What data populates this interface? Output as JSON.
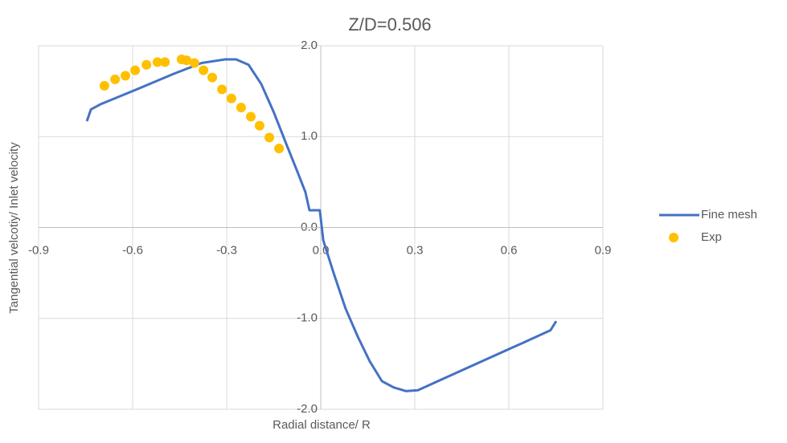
{
  "chart_data": {
    "type": "line",
    "title": "Z/D=0.506",
    "x_label": "Radial distance/ R",
    "y_label": "Tangential velcotiy/ Inlet velocity",
    "xlim": [
      -0.9,
      0.9
    ],
    "xticks": [
      -0.9,
      -0.6,
      -0.3,
      {
        "value": 0,
        "label": "0.0"
      },
      0.3,
      0.6,
      0.9
    ],
    "ylim": [
      -2,
      2
    ],
    "yticks": [
      {
        "value": 2,
        "label": "2.0"
      },
      {
        "value": 1,
        "label": "1.0"
      },
      {
        "value": 0,
        "label": "0.0"
      },
      {
        "value": -1,
        "label": "-1.0"
      },
      {
        "value": -2,
        "label": "-2.0"
      }
    ],
    "grid": true,
    "legend": "right",
    "series": [
      {
        "name": "Fine mesh",
        "color": "#4472c4",
        "mode": "line",
        "x": [
          -0.746,
          -0.733,
          -0.7,
          -0.587,
          -0.47,
          -0.38,
          -0.305,
          -0.27,
          -0.23,
          -0.19,
          -0.15,
          -0.11,
          -0.074,
          -0.049,
          -0.036,
          -0.023,
          -0.003,
          0.008,
          0.041,
          0.079,
          0.118,
          0.156,
          0.195,
          0.233,
          0.272,
          0.31,
          0.374,
          0.515,
          0.644,
          0.733,
          0.751
        ],
        "values": [
          1.17,
          1.3,
          1.36,
          1.52,
          1.69,
          1.81,
          1.85,
          1.85,
          1.79,
          1.58,
          1.27,
          0.92,
          0.61,
          0.39,
          0.19,
          0.19,
          0.19,
          -0.14,
          -0.5,
          -0.89,
          -1.2,
          -1.47,
          -1.69,
          -1.76,
          -1.8,
          -1.79,
          -1.69,
          -1.47,
          -1.27,
          -1.13,
          -1.03
        ]
      },
      {
        "name": "Exp",
        "color": "#ffc000",
        "mode": "markers",
        "x": [
          -0.69,
          -0.656,
          -0.623,
          -0.592,
          -0.556,
          -0.521,
          -0.497,
          -0.444,
          -0.428,
          -0.403,
          -0.374,
          -0.346,
          -0.315,
          -0.285,
          -0.254,
          -0.223,
          -0.195,
          -0.164,
          -0.133
        ],
        "values": [
          1.56,
          1.63,
          1.67,
          1.73,
          1.79,
          1.82,
          1.82,
          1.85,
          1.84,
          1.81,
          1.73,
          1.65,
          1.52,
          1.42,
          1.32,
          1.22,
          1.12,
          0.99,
          0.87
        ]
      }
    ]
  }
}
